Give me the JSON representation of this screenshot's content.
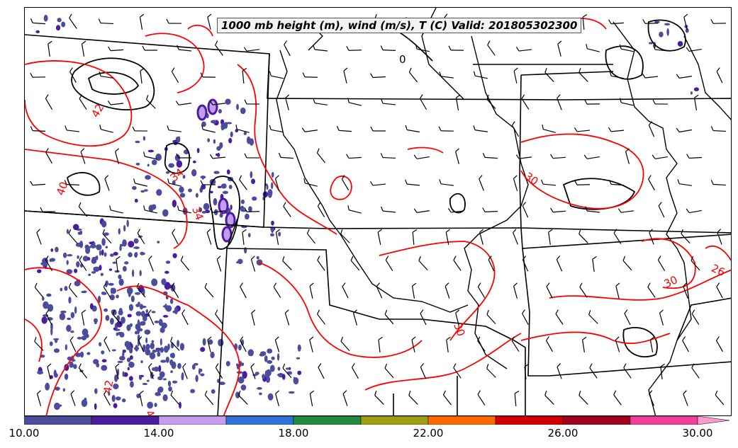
{
  "title": "1000 mb height (m), wind (m/s), T (C) Valid: 201805302300",
  "colorbar": {
    "colors": [
      "#4b4d9c",
      "#4a1ca0",
      "#c69cf0",
      "#2f73d9",
      "#238a3c",
      "#9aa012",
      "#ff6a00",
      "#d40000",
      "#a1001f",
      "#ef3f9a",
      "#ff9ad0"
    ],
    "ticks": [
      {
        "value": "10.00"
      },
      {
        "value": "14.00"
      },
      {
        "value": "18.00"
      },
      {
        "value": "22.00"
      },
      {
        "value": "26.00"
      },
      {
        "value": "30.00"
      }
    ]
  },
  "contour_labels": {
    "height": [
      "0",
      "0"
    ],
    "temperature": [
      "30",
      "30",
      "26",
      "34",
      "34",
      "42",
      "42",
      "30",
      "40",
      "4"
    ]
  },
  "colors": {
    "height_contour": "#000000",
    "temperature_contour": "#ff0000",
    "state_borders": "#000000",
    "wind_barbs": "#000000",
    "shading": "#4b4d9c"
  }
}
